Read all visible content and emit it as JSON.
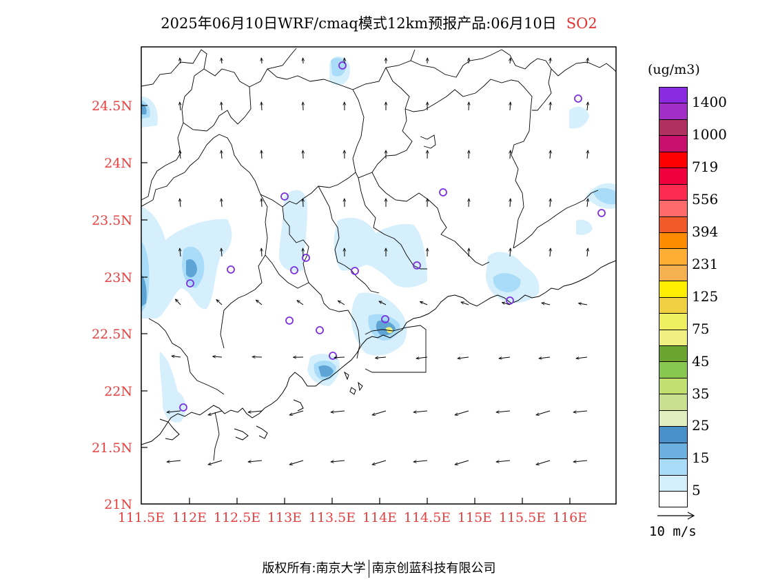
{
  "title": "2025年06月10日WRF/cmaq模式12km预报产品:06月10日",
  "pollutant": "SO2",
  "unit": "(ug/m3)",
  "lat_labels": [
    "24.5N",
    "24N",
    "23.5N",
    "23N",
    "22.5N",
    "22N",
    "21.5N",
    "21N"
  ],
  "lon_labels": [
    "111.5E",
    "112E",
    "112.5E",
    "113E",
    "113.5E",
    "114E",
    "114.5E",
    "115E",
    "115.5E",
    "116E"
  ],
  "colorbar": {
    "labels": [
      "1400",
      "1000",
      "719",
      "556",
      "394",
      "231",
      "125",
      "75",
      "45",
      "35",
      "25",
      "15",
      "5"
    ],
    "colors": [
      "#8a2be2",
      "#a12ec6",
      "#b03060",
      "#c8106e",
      "#ff0000",
      "#f0003c",
      "#ff2a50",
      "#ff6a6a",
      "#f05a28",
      "#ff8c00",
      "#ffad33",
      "#f5b050",
      "#ffee00",
      "#f0d040",
      "#eeee60",
      "#f0f080",
      "#6aa530",
      "#88c850",
      "#c0e070",
      "#c8e090",
      "#e0eec0",
      "#4a90c8",
      "#6cb0e0",
      "#a8dcf8",
      "#d6effc",
      "#ffffff"
    ]
  },
  "reference_vector": "10 m/s",
  "footer": {
    "left": "版权所有:南京大学",
    "right": "南京创蓝科技有限公司"
  }
}
